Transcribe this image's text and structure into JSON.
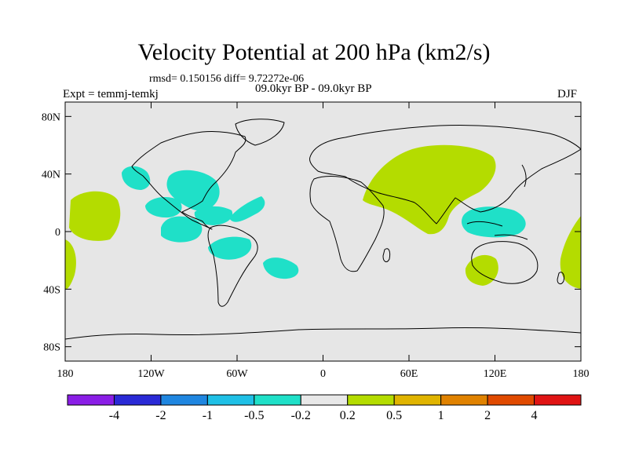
{
  "title": "Velocity Potential at 200 hPa (km2/s)",
  "stats": "rmsd= 0.150156 diff= 9.72272e-06",
  "experiment": "Expt = temmj-temkj",
  "period": "09.0kyr BP - 09.0kyr BP",
  "season": "DJF",
  "lat_ticks": [
    "80N",
    "40N",
    "0",
    "40S",
    "80S"
  ],
  "lon_ticks": [
    "180",
    "120W",
    "60W",
    "0",
    "60E",
    "120E",
    "180"
  ],
  "colorbar": {
    "colors": [
      "#8a1ee6",
      "#2a2ad6",
      "#1f86e0",
      "#1fc0e6",
      "#1fe0c8",
      "#e8e8e8",
      "#b4dc00",
      "#e0b400",
      "#e08200",
      "#e04a00",
      "#e01414"
    ],
    "labels": [
      "-4",
      "-2",
      "-1",
      "-0.5",
      "-0.2",
      "0.2",
      "0.5",
      "1",
      "2",
      "4"
    ]
  },
  "colors": {
    "background": "#e6e6e6",
    "positive": "#b4dc00",
    "negative": "#1fe0c8",
    "coast": "#000000"
  }
}
